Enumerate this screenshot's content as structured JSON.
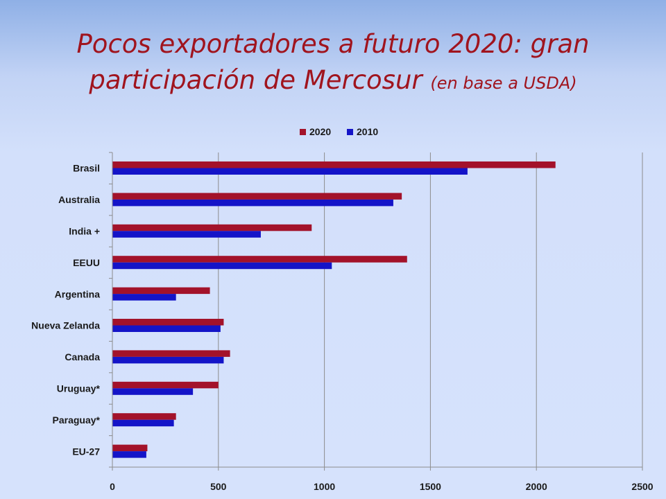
{
  "slide": {
    "title_line1": "Pocos exportadores a futuro 2020:  gran",
    "title_line2": "participación de Mercosur",
    "title_note": "(en base a USDA)"
  },
  "chart_data": {
    "type": "bar",
    "orientation": "horizontal",
    "categories": [
      "Brasil",
      "Australia",
      "India +",
      "EEUU",
      "Argentina",
      "Nueva Zelanda",
      "Canada",
      "Uruguay*",
      "Paraguay*",
      "EU-27"
    ],
    "series": [
      {
        "name": "2020",
        "color": "#a3122a",
        "values": [
          2090,
          1365,
          940,
          1390,
          460,
          525,
          555,
          500,
          300,
          165
        ]
      },
      {
        "name": "2010",
        "color": "#1414c8",
        "values": [
          1675,
          1325,
          700,
          1035,
          300,
          510,
          525,
          380,
          290,
          160
        ]
      }
    ],
    "xticks": [
      0,
      500,
      1000,
      1500,
      2000,
      2500
    ],
    "xlim": [
      0,
      2500
    ],
    "grid": true,
    "legend_position": "top"
  }
}
